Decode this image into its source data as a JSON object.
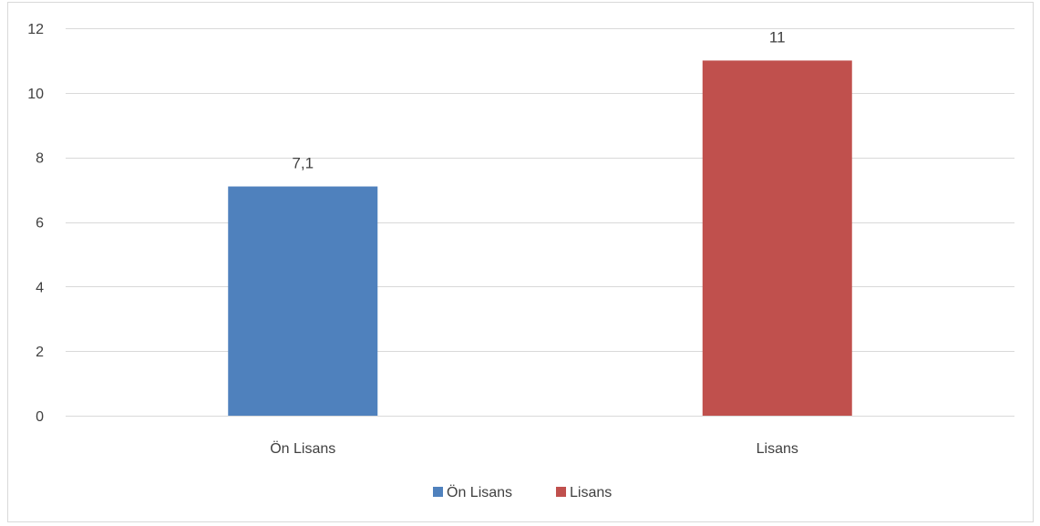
{
  "chart_data": {
    "type": "bar",
    "title": "",
    "xlabel": "",
    "ylabel": "",
    "categories": [
      "Ön Lisans",
      "Lisans"
    ],
    "series": [
      {
        "name": "Ön Lisans",
        "values": [
          7.1,
          null
        ],
        "color": "#4f81bd"
      },
      {
        "name": "Lisans",
        "values": [
          null,
          11
        ],
        "color": "#c0504d"
      }
    ],
    "data_labels": [
      "7,1",
      "11"
    ],
    "ylim": [
      0,
      12
    ],
    "yticks": [
      0,
      2,
      4,
      6,
      8,
      10,
      12
    ],
    "grid": true,
    "legend_position": "bottom"
  }
}
